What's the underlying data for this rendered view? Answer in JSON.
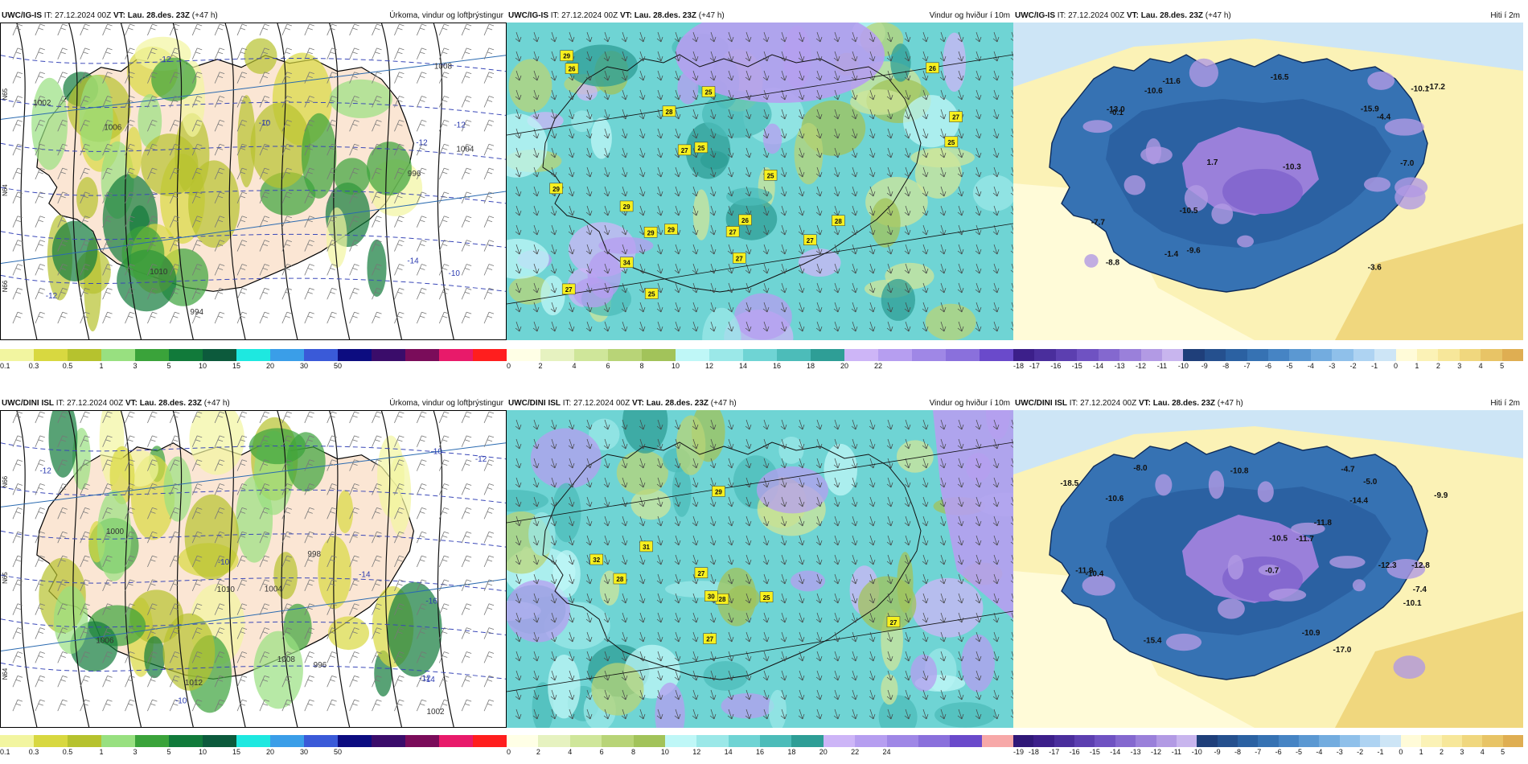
{
  "rows": [
    {
      "panels": [
        {
          "model": "UWC/IG-IS",
          "it_label": "IT:",
          "it_value": "27.12.2024 00Z",
          "vt_label": "VT:",
          "vt_value": "Lau. 28.des. 23Z",
          "lead": "(+47 h)",
          "title": "Úrkoma, vindur og loftþrýstingur",
          "field": "precip",
          "colorbar": {
            "colors": [
              "#f2f5a0",
              "#d8d840",
              "#b6c22e",
              "#98e080",
              "#3aa33a",
              "#117a3a",
              "#0c5a3c",
              "#1ee8e0",
              "#3a9ee8",
              "#3a5ad8",
              "#0c0c80",
              "#3a0c6a",
              "#7a0c5a",
              "#e81a6a",
              "#ff1e1e"
            ],
            "ticks": [
              "0.1",
              "0.3",
              "0.5",
              "1",
              "3",
              "5",
              "10",
              "15",
              "20",
              "30",
              "50"
            ]
          },
          "map_labels": [
            "-14",
            "-12",
            "-10",
            "-10",
            "-12",
            "-12",
            "-12",
            "1010",
            "1008",
            "1006",
            "1004",
            "1002",
            "996",
            "994",
            "N66",
            "N65",
            "N64"
          ]
        },
        {
          "model": "UWC/IG-IS",
          "it_label": "IT:",
          "it_value": "27.12.2024 00Z",
          "vt_label": "VT:",
          "vt_value": "Lau. 28.des. 23Z",
          "lead": "(+47 h)",
          "title": "Vindur og hviður í 10m",
          "field": "wind",
          "colorbar": {
            "colors": [
              "#ffffe6",
              "#e6f2c0",
              "#cfe69a",
              "#b8d477",
              "#a2c35a",
              "#bff7f7",
              "#9be8e8",
              "#6fd4d4",
              "#4cbcb9",
              "#2e9e96",
              "#cdb5f7",
              "#b69ef0",
              "#9f87e6",
              "#8a70dc",
              "#6a4acb"
            ],
            "ticks": [
              "0",
              "2",
              "4",
              "6",
              "8",
              "10",
              "12",
              "14",
              "16",
              "18",
              "20",
              "22"
            ]
          },
          "gust_labels": [
            "26",
            "29",
            "29",
            "26",
            "27",
            "27",
            "25",
            "29",
            "27",
            "28",
            "29",
            "25",
            "25",
            "29",
            "26",
            "27",
            "27",
            "34",
            "28",
            "25",
            "25",
            "27"
          ]
        },
        {
          "model": "UWC/IG-IS",
          "it_label": "IT:",
          "it_value": "27.12.2024 00Z",
          "vt_label": "VT:",
          "vt_value": "Lau. 28.des. 23Z",
          "lead": "(+47 h)",
          "title": "Hiti í 2m",
          "field": "temp",
          "colorbar": {
            "colors": [
              "#3c1f8a",
              "#4a2e9c",
              "#5c3fb0",
              "#6f52c2",
              "#8468cf",
              "#9a80da",
              "#b29ae4",
              "#c8b5ee",
              "#1f3f7a",
              "#25508e",
              "#2b61a2",
              "#3672b3",
              "#4684c4",
              "#5b98d2",
              "#73acdf",
              "#8fc0ea",
              "#aed3f2",
              "#cde5f6",
              "#fffbd8",
              "#fbf2b6",
              "#f7e79a",
              "#f0d77e",
              "#e8c466",
              "#dfae52"
            ],
            "ticks": [
              "-18",
              "-17",
              "-16",
              "-15",
              "-14",
              "-13",
              "-12",
              "-11",
              "-10",
              "-9",
              "-8",
              "-7",
              "-6",
              "-5",
              "-4",
              "-3",
              "-2",
              "-1",
              "0",
              "1",
              "2",
              "3",
              "4",
              "5"
            ]
          },
          "temp_labels": [
            "-10.6",
            "-7.0",
            "1.7",
            "-3.6",
            "-7.7",
            "-0.1",
            "-10.3",
            "-1.4",
            "-10.5",
            "-10.1",
            "-15.9",
            "-11.6",
            "-13.0",
            "-17.2",
            "-9.6",
            "-16.5",
            "-8.8",
            "-4.4"
          ]
        }
      ]
    },
    {
      "panels": [
        {
          "model": "UWC/DINI ISL",
          "it_label": "IT:",
          "it_value": "27.12.2024 00Z",
          "vt_label": "VT:",
          "vt_value": "Lau. 28.des. 23Z",
          "lead": "(+47 h)",
          "title": "Úrkoma, vindur og loftþrýstingur",
          "field": "precip",
          "colorbar": {
            "colors": [
              "#f2f5a0",
              "#d8d840",
              "#b6c22e",
              "#98e080",
              "#3aa33a",
              "#117a3a",
              "#0c5a3c",
              "#1ee8e0",
              "#3a9ee8",
              "#3a5ad8",
              "#0c0c80",
              "#3a0c6a",
              "#7a0c5a",
              "#e81a6a",
              "#ff1e1e"
            ],
            "ticks": [
              "0.1",
              "0.3",
              "0.5",
              "1",
              "3",
              "5",
              "10",
              "15",
              "20",
              "30",
              "50"
            ]
          },
          "map_labels": [
            "-16",
            "-14",
            "-14",
            "-12",
            "-12",
            "-10",
            "-10",
            "-12",
            "-10",
            "1012",
            "1010",
            "1008",
            "1006",
            "1004",
            "1002",
            "1000",
            "998",
            "996",
            "N66",
            "N65",
            "N64"
          ]
        },
        {
          "model": "UWC/DINI ISL",
          "it_label": "IT:",
          "it_value": "27.12.2024 00Z",
          "vt_label": "VT:",
          "vt_value": "Lau. 28.des. 23Z",
          "lead": "(+47 h)",
          "title": "Vindur og hviður í 10m",
          "field": "wind",
          "colorbar": {
            "colors": [
              "#ffffe6",
              "#e6f2c0",
              "#cfe69a",
              "#b8d477",
              "#a2c35a",
              "#bff7f7",
              "#9be8e8",
              "#6fd4d4",
              "#4cbcb9",
              "#2e9e96",
              "#cdb5f7",
              "#b69ef0",
              "#9f87e6",
              "#8a70dc",
              "#6a4acb",
              "#f7a8a8"
            ],
            "ticks": [
              "0",
              "2",
              "4",
              "6",
              "8",
              "10",
              "12",
              "14",
              "16",
              "18",
              "20",
              "22",
              "24"
            ]
          },
          "gust_labels": [
            "28",
            "28",
            "27",
            "25",
            "29",
            "27",
            "32",
            "30",
            "27",
            "31"
          ]
        },
        {
          "model": "UWC/DINI ISL",
          "it_label": "IT:",
          "it_value": "27.12.2024 00Z",
          "vt_label": "VT:",
          "vt_value": "Lau. 28.des. 23Z",
          "lead": "(+47 h)",
          "title": "Hiti í 2m",
          "field": "temp",
          "colorbar": {
            "colors": [
              "#301878",
              "#3c1f8a",
              "#4a2e9c",
              "#5c3fb0",
              "#6f52c2",
              "#8468cf",
              "#9a80da",
              "#b29ae4",
              "#c8b5ee",
              "#1f3f7a",
              "#25508e",
              "#2b61a2",
              "#3672b3",
              "#4684c4",
              "#5b98d2",
              "#73acdf",
              "#8fc0ea",
              "#aed3f2",
              "#cde5f6",
              "#fffbd8",
              "#fbf2b6",
              "#f7e79a",
              "#f0d77e",
              "#e8c466",
              "#dfae52"
            ],
            "ticks": [
              "-19",
              "-18",
              "-17",
              "-16",
              "-15",
              "-14",
              "-13",
              "-12",
              "-11",
              "-10",
              "-9",
              "-8",
              "-7",
              "-6",
              "-5",
              "-4",
              "-3",
              "-2",
              "-1",
              "0",
              "1",
              "2",
              "3",
              "4",
              "5"
            ]
          },
          "temp_labels": [
            "-11.8",
            "-10.9",
            "-5.0",
            "-11.7",
            "-12.8",
            "-10.5",
            "-10.1",
            "-9.9",
            "-8.0",
            "-12.3",
            "-10.6",
            "-11.9",
            "-14.4",
            "-17.0",
            "-10.8",
            "-18.5",
            "-10.4",
            "-4.7",
            "-7.4",
            "-0.7",
            "-15.4"
          ]
        }
      ]
    }
  ]
}
